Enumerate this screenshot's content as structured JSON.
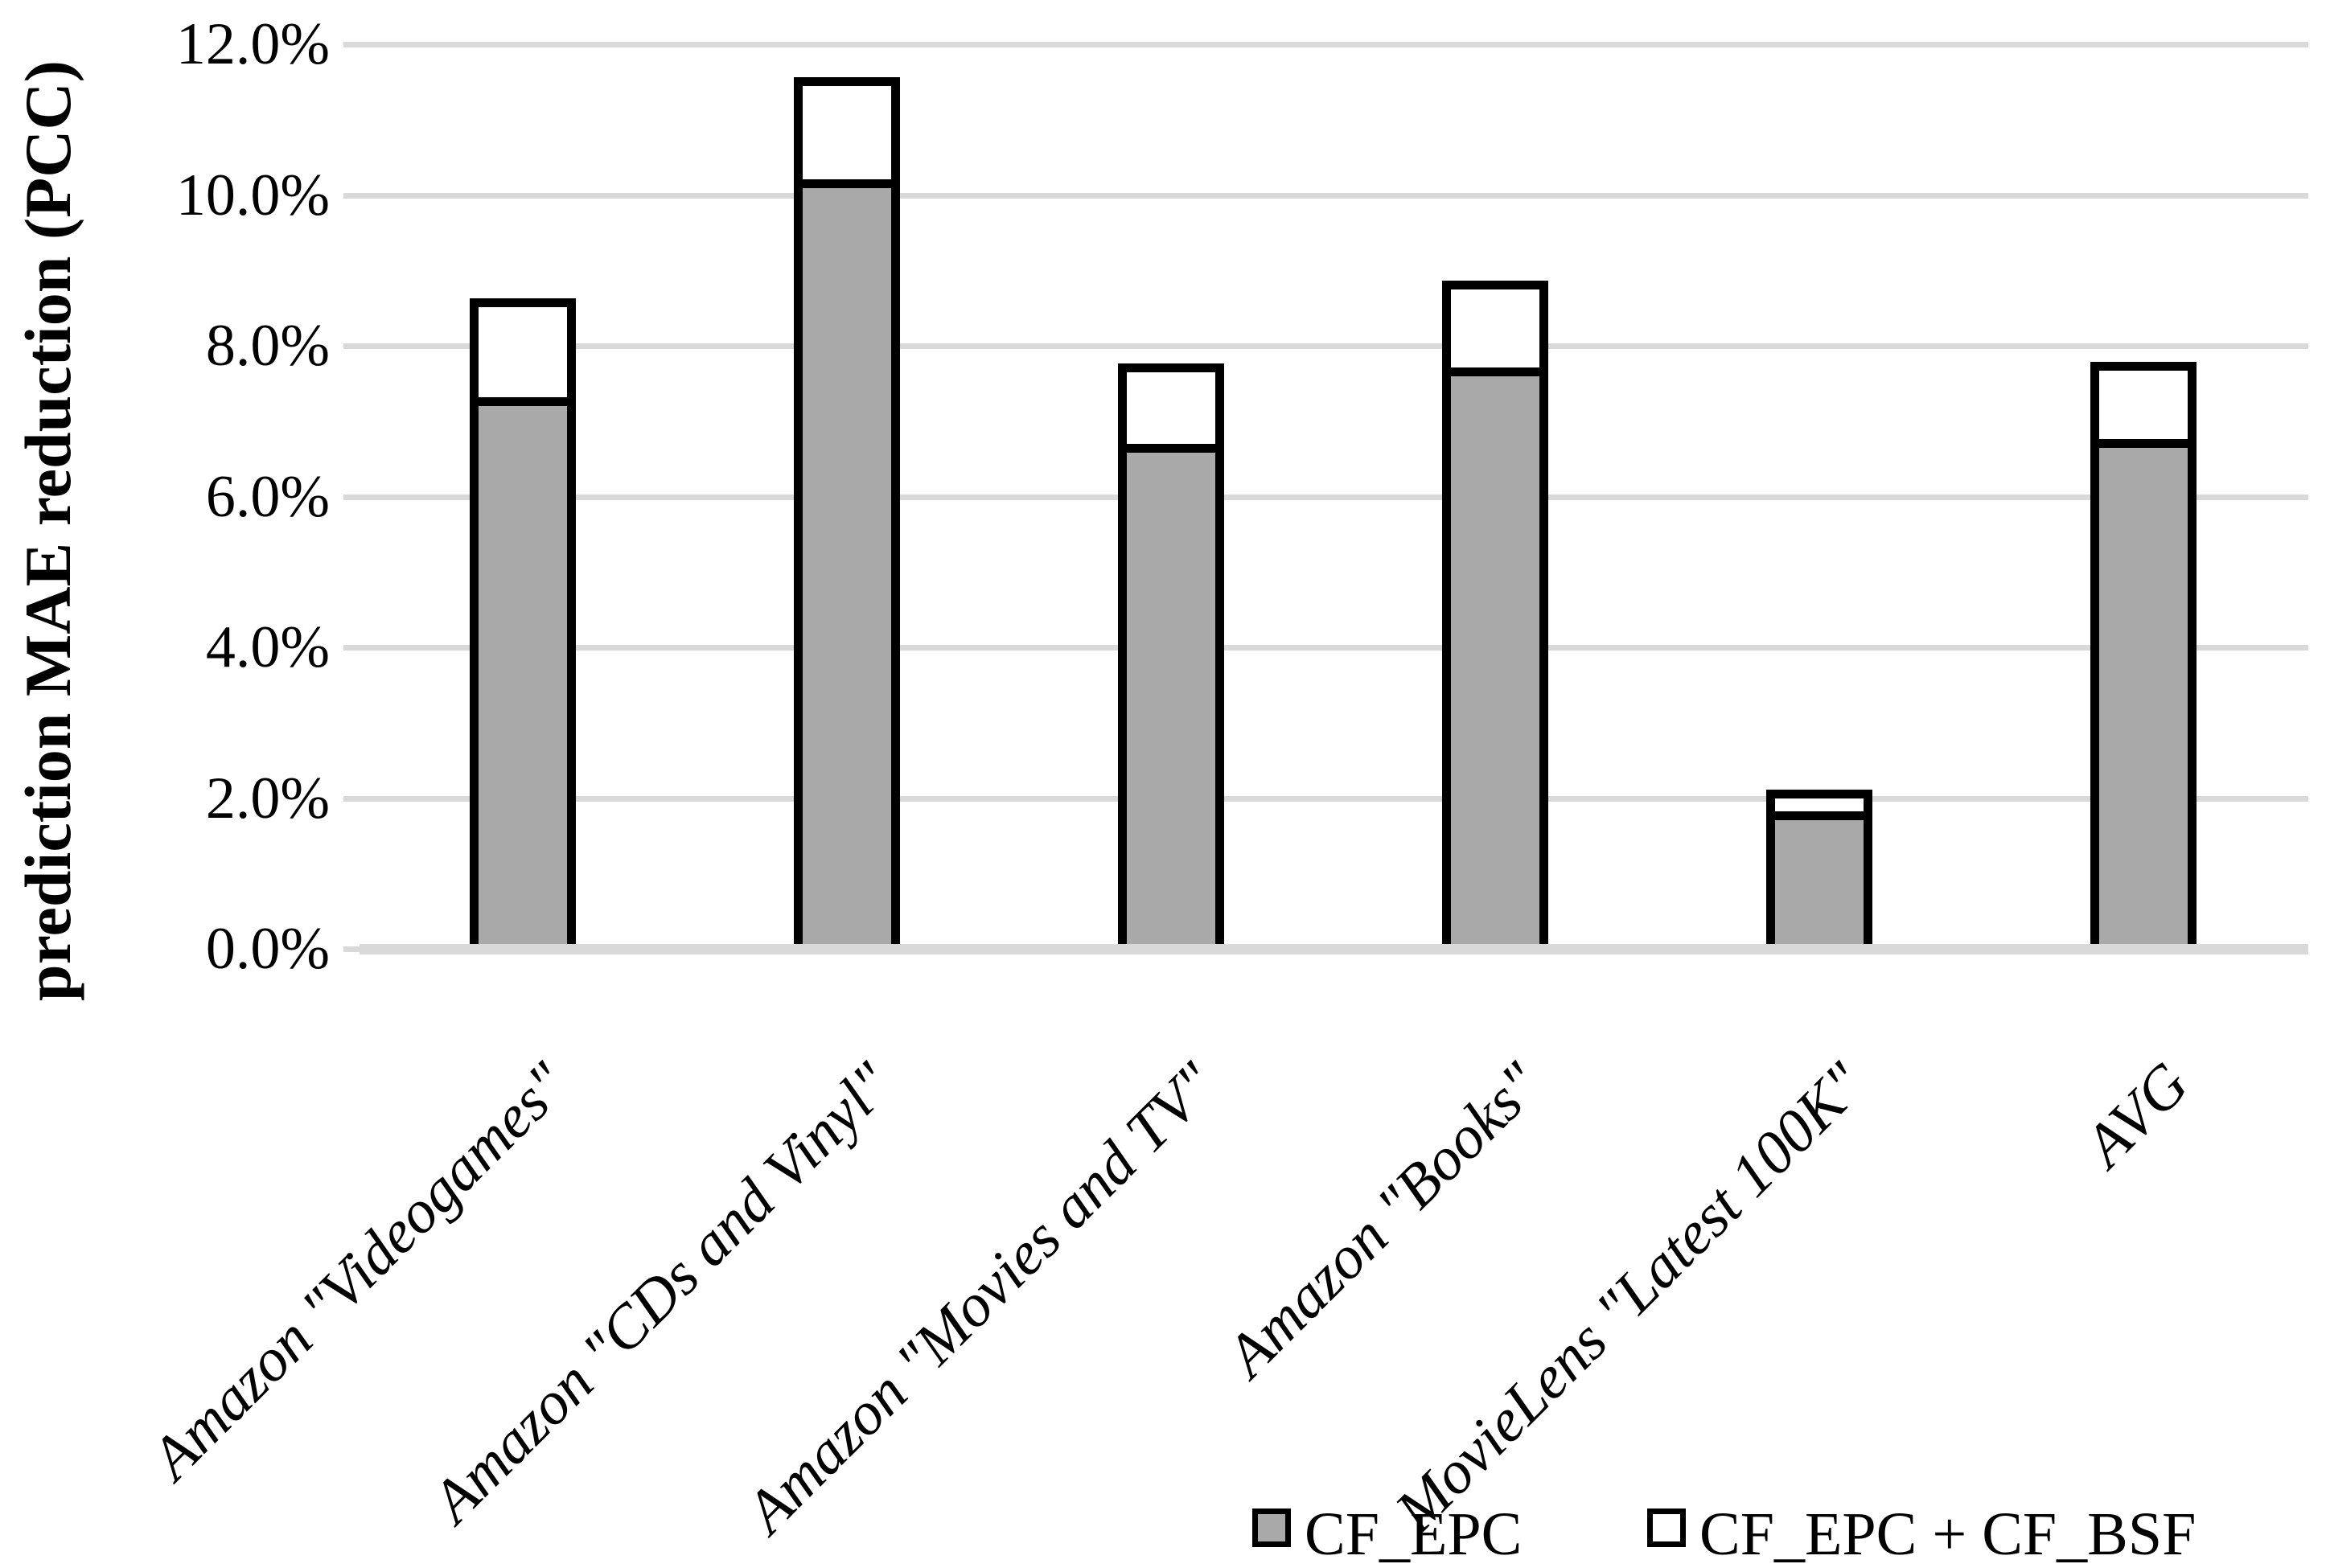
{
  "chart_data": {
    "type": "bar",
    "stacked": true,
    "title": "",
    "xlabel": "",
    "ylabel": "prediction MAE reduction (PCC)",
    "ylim": [
      0,
      12
    ],
    "ytick_step": 2,
    "ytick_labels": [
      "0.0%",
      "2.0%",
      "4.0%",
      "6.0%",
      "8.0%",
      "10.0%",
      "12.0%"
    ],
    "grid": true,
    "legend_position": "bottom-right",
    "categories": [
      "Amazon \"Videogames\"",
      "Amazon \"CDs and Vinyl\"",
      "Amazon \"Movies and TV\"",
      "Amazon \"Books\"",
      "MovieLens \"Latest 100K\"",
      "AVG"
    ],
    "series": [
      {
        "name": "CF_EPC",
        "values": [
          7.32,
          10.21,
          6.7,
          7.71,
          1.82,
          6.76
        ],
        "fill": "#A9A9A9"
      },
      {
        "name": "CF_EPC + CF_BSF",
        "stacked_totals": [
          8.63,
          11.56,
          7.76,
          8.86,
          2.11,
          7.79
        ],
        "increment_values": [
          1.31,
          1.35,
          1.06,
          1.15,
          0.29,
          1.03
        ],
        "fill": "#FFFFFF"
      }
    ],
    "legend": [
      "CF_EPC",
      "CF_EPC + CF_BSF"
    ],
    "colors": {
      "bar_gray": "#A9A9A9",
      "bar_border": "#000000",
      "gridline": "#D9D9D9",
      "text": "#000000"
    }
  }
}
